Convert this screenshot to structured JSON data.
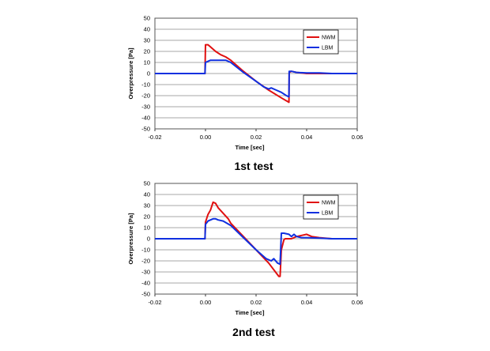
{
  "chart_data": [
    {
      "type": "line",
      "caption": "1st test",
      "xlabel": "Time [sec]",
      "ylabel": "Overpressure [Pa]",
      "xlim": [
        -0.02,
        0.06
      ],
      "ylim": [
        -50,
        50
      ],
      "xticks": [
        -0.02,
        0,
        0.02,
        0.04,
        0.06
      ],
      "xtick_labels": [
        "-0.02",
        "0.00",
        "0.02",
        "0.04",
        "0.06"
      ],
      "yticks": [
        -50,
        -40,
        -30,
        -20,
        -10,
        0,
        10,
        20,
        30,
        40,
        50
      ],
      "ytick_labels": [
        "-50",
        "-40",
        "-30",
        "-20",
        "-10",
        "0",
        "10",
        "20",
        "30",
        "40",
        "50"
      ],
      "grid": "horizontal",
      "legend_position": "top-right",
      "series": [
        {
          "name": "NWM",
          "color": "#e01010",
          "points": [
            [
              -0.02,
              0
            ],
            [
              -0.0002,
              0
            ],
            [
              0.0,
              26
            ],
            [
              0.001,
              26
            ],
            [
              0.002,
              24
            ],
            [
              0.004,
              20
            ],
            [
              0.006,
              17
            ],
            [
              0.008,
              15
            ],
            [
              0.01,
              12
            ],
            [
              0.015,
              2
            ],
            [
              0.02,
              -7
            ],
            [
              0.025,
              -15
            ],
            [
              0.03,
              -22
            ],
            [
              0.033,
              -26
            ],
            [
              0.0331,
              1
            ],
            [
              0.034,
              2
            ],
            [
              0.036,
              1
            ],
            [
              0.04,
              0
            ],
            [
              0.045,
              0
            ],
            [
              0.05,
              0
            ],
            [
              0.06,
              0
            ]
          ]
        },
        {
          "name": "LBM",
          "color": "#1030e0",
          "points": [
            [
              -0.02,
              0
            ],
            [
              -0.0002,
              0
            ],
            [
              0.0,
              10
            ],
            [
              0.001,
              11
            ],
            [
              0.002,
              12
            ],
            [
              0.005,
              12
            ],
            [
              0.008,
              12
            ],
            [
              0.01,
              10
            ],
            [
              0.015,
              1
            ],
            [
              0.02,
              -7
            ],
            [
              0.023,
              -12
            ],
            [
              0.025,
              -14
            ],
            [
              0.026,
              -13
            ],
            [
              0.028,
              -15
            ],
            [
              0.03,
              -17
            ],
            [
              0.032,
              -20
            ],
            [
              0.033,
              -21
            ],
            [
              0.0331,
              2
            ],
            [
              0.034,
              2
            ],
            [
              0.036,
              1
            ],
            [
              0.04,
              0.5
            ],
            [
              0.045,
              0.5
            ],
            [
              0.05,
              0
            ],
            [
              0.06,
              0
            ]
          ]
        }
      ]
    },
    {
      "type": "line",
      "caption": "2nd test",
      "xlabel": "Time [sec]",
      "ylabel": "Overpressure [Pa]",
      "xlim": [
        -0.02,
        0.06
      ],
      "ylim": [
        -50,
        50
      ],
      "xticks": [
        -0.02,
        0,
        0.02,
        0.04,
        0.06
      ],
      "xtick_labels": [
        "-0.02",
        "0.00",
        "0.02",
        "0.04",
        "0.06"
      ],
      "yticks": [
        -50,
        -40,
        -30,
        -20,
        -10,
        0,
        10,
        20,
        30,
        40,
        50
      ],
      "ytick_labels": [
        "-50",
        "-40",
        "-30",
        "-20",
        "-10",
        "0",
        "10",
        "20",
        "30",
        "40",
        "50"
      ],
      "grid": "horizontal",
      "legend_position": "top-right",
      "series": [
        {
          "name": "NWM",
          "color": "#e01010",
          "points": [
            [
              -0.02,
              0
            ],
            [
              -0.0002,
              0
            ],
            [
              0.0,
              15
            ],
            [
              0.001,
              22
            ],
            [
              0.002,
              26
            ],
            [
              0.003,
              33
            ],
            [
              0.004,
              32
            ],
            [
              0.005,
              28
            ],
            [
              0.007,
              23
            ],
            [
              0.009,
              18
            ],
            [
              0.01,
              14
            ],
            [
              0.015,
              2
            ],
            [
              0.02,
              -10
            ],
            [
              0.025,
              -22
            ],
            [
              0.029,
              -34
            ],
            [
              0.0295,
              -34
            ],
            [
              0.03,
              -10
            ],
            [
              0.031,
              -1
            ],
            [
              0.0315,
              0
            ],
            [
              0.034,
              0
            ],
            [
              0.036,
              2
            ],
            [
              0.038,
              3
            ],
            [
              0.04,
              4
            ],
            [
              0.042,
              2
            ],
            [
              0.045,
              1
            ],
            [
              0.05,
              0
            ],
            [
              0.06,
              0
            ]
          ]
        },
        {
          "name": "LBM",
          "color": "#1030e0",
          "points": [
            [
              -0.02,
              0
            ],
            [
              -0.0002,
              0
            ],
            [
              0.0,
              13
            ],
            [
              0.001,
              16
            ],
            [
              0.002,
              17
            ],
            [
              0.003,
              18
            ],
            [
              0.004,
              18
            ],
            [
              0.005,
              17
            ],
            [
              0.007,
              16
            ],
            [
              0.01,
              12
            ],
            [
              0.015,
              1
            ],
            [
              0.02,
              -10
            ],
            [
              0.024,
              -18
            ],
            [
              0.026,
              -20
            ],
            [
              0.027,
              -18
            ],
            [
              0.0285,
              -22
            ],
            [
              0.0295,
              -23
            ],
            [
              0.03,
              5
            ],
            [
              0.031,
              5
            ],
            [
              0.033,
              4
            ],
            [
              0.034,
              2
            ],
            [
              0.035,
              4
            ],
            [
              0.036,
              2
            ],
            [
              0.038,
              1
            ],
            [
              0.04,
              1
            ],
            [
              0.045,
              0.5
            ],
            [
              0.05,
              0
            ],
            [
              0.06,
              0
            ]
          ]
        }
      ]
    }
  ]
}
